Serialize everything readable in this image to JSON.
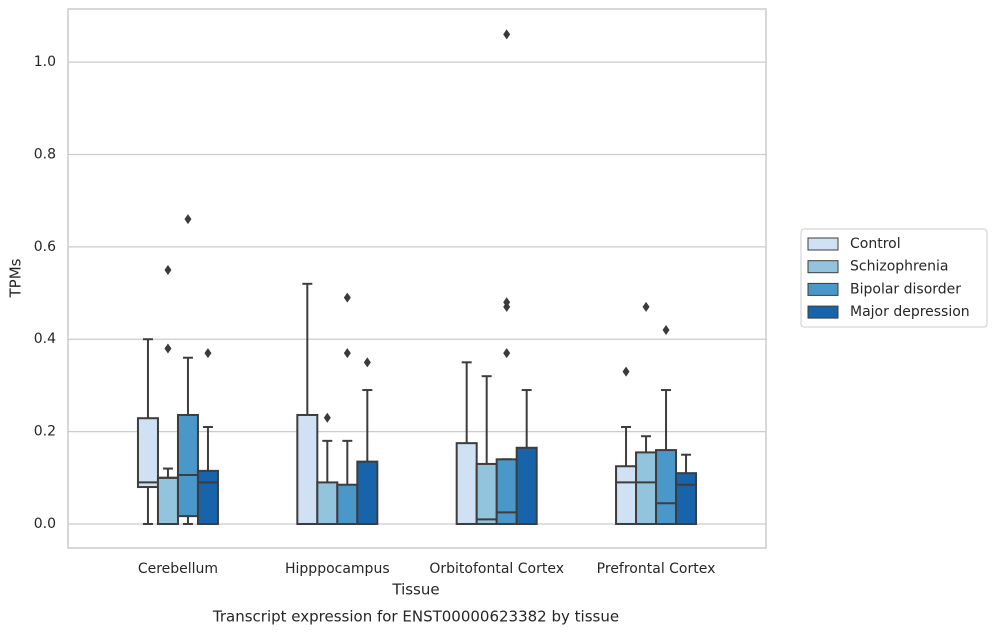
{
  "chart_data": {
    "type": "box",
    "title": "Transcript expression for ENST00000623382 by tissue",
    "x_label": "Tissue",
    "y_label": "TPMs",
    "categories": [
      "Cerebellum",
      "Hipppocampus",
      "Orbitofontal Cortex",
      "Prefrontal Cortex"
    ],
    "ylim": [
      -0.052,
      1.115
    ],
    "yticks": [
      {
        "value": 0,
        "label": "0.0"
      },
      0.2,
      0.4,
      0.6,
      0.8,
      {
        "value": 1,
        "label": "1.0"
      }
    ],
    "grid": true,
    "legend": "right",
    "series": [
      {
        "name": "Control",
        "color": "#cfe1f2",
        "boxes": [
          {
            "low": 0,
            "q1": 0.08,
            "median": 0.09,
            "q3": 0.229,
            "high": 0.4,
            "outliers": []
          },
          {
            "low": 0,
            "q1": 0,
            "median": 0,
            "q3": 0.236,
            "high": 0.52,
            "outliers": []
          },
          {
            "low": 0,
            "q1": 0,
            "median": 0,
            "q3": 0.175,
            "high": 0.35,
            "outliers": []
          },
          {
            "low": 0,
            "q1": 0,
            "median": 0.09,
            "q3": 0.125,
            "high": 0.21,
            "outliers": [
              0.33
            ]
          }
        ]
      },
      {
        "name": "Schizophrenia",
        "color": "#93c4de",
        "boxes": [
          {
            "low": 0,
            "q1": 0,
            "median": 0.1,
            "q3": 0.1,
            "high": 0.12,
            "outliers": [
              0.55,
              0.38
            ]
          },
          {
            "low": 0,
            "q1": 0,
            "median": 0,
            "q3": 0.09,
            "high": 0.18,
            "outliers": [
              0.23
            ]
          },
          {
            "low": 0,
            "q1": 0,
            "median": 0.01,
            "q3": 0.13,
            "high": 0.32,
            "outliers": []
          },
          {
            "low": 0,
            "q1": 0,
            "median": 0.09,
            "q3": 0.155,
            "high": 0.19,
            "outliers": [
              0.47
            ]
          }
        ]
      },
      {
        "name": "Bipolar disorder",
        "color": "#4a97c9",
        "boxes": [
          {
            "low": 0,
            "q1": 0.017,
            "median": 0.106,
            "q3": 0.236,
            "high": 0.36,
            "outliers": [
              0.66
            ]
          },
          {
            "low": 0,
            "q1": 0,
            "median": 0,
            "q3": 0.085,
            "high": 0.18,
            "outliers": [
              0.49,
              0.37
            ]
          },
          {
            "low": 0,
            "q1": 0,
            "median": 0.025,
            "q3": 0.14,
            "high": 0.14,
            "outliers": [
              1.06,
              0.48,
              0.47,
              0.37
            ]
          },
          {
            "low": 0,
            "q1": 0,
            "median": 0.045,
            "q3": 0.16,
            "high": 0.29,
            "outliers": [
              0.42
            ]
          }
        ]
      },
      {
        "name": "Major depression",
        "color": "#1764ab",
        "boxes": [
          {
            "low": 0,
            "q1": 0,
            "median": 0.09,
            "q3": 0.115,
            "high": 0.21,
            "outliers": [
              0.37
            ]
          },
          {
            "low": 0,
            "q1": 0,
            "median": 0,
            "q3": 0.135,
            "high": 0.29,
            "outliers": [
              0.35
            ]
          },
          {
            "low": 0,
            "q1": 0,
            "median": 0,
            "q3": 0.165,
            "high": 0.29,
            "outliers": []
          },
          {
            "low": 0,
            "q1": 0,
            "median": 0.085,
            "q3": 0.11,
            "high": 0.15,
            "outliers": []
          }
        ]
      }
    ]
  }
}
